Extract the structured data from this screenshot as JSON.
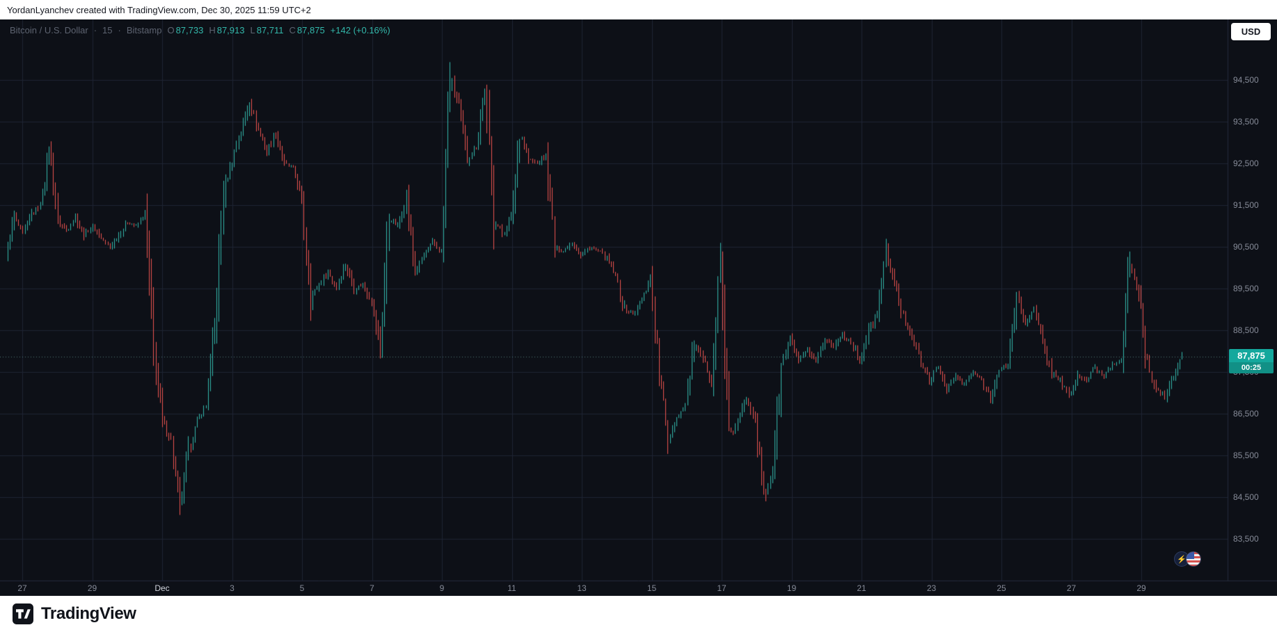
{
  "top_bar": {
    "attribution": "YordanLyanchev created with TradingView.com, Dec 30, 2025 11:59 UTC+2"
  },
  "header": {
    "symbol": "Bitcoin / U.S. Dollar",
    "separator": "·",
    "interval": "15",
    "exchange": "Bitstamp",
    "ohlc": [
      {
        "label": "O",
        "value": "87,733"
      },
      {
        "label": "H",
        "value": "87,913"
      },
      {
        "label": "L",
        "value": "87,711"
      },
      {
        "label": "C",
        "value": "87,875"
      }
    ],
    "change": "+142 (+0.16%)",
    "currency_button": "USD"
  },
  "price_scale": {
    "ticks": [
      {
        "label": "94,500",
        "value": 94500
      },
      {
        "label": "93,500",
        "value": 93500
      },
      {
        "label": "92,500",
        "value": 92500
      },
      {
        "label": "91,500",
        "value": 91500
      },
      {
        "label": "90,500",
        "value": 90500
      },
      {
        "label": "89,500",
        "value": 89500
      },
      {
        "label": "88,500",
        "value": 88500
      },
      {
        "label": "87,500",
        "value": 87500
      },
      {
        "label": "86,500",
        "value": 86500
      },
      {
        "label": "85,500",
        "value": 85500
      },
      {
        "label": "84,500",
        "value": 84500
      },
      {
        "label": "83,500",
        "value": 83500
      }
    ],
    "last_price_label": "87,875",
    "countdown": "00:25"
  },
  "time_scale": {
    "ticks": [
      "27",
      "29",
      "Dec",
      "3",
      "5",
      "7",
      "9",
      "11",
      "13",
      "15",
      "17",
      "19",
      "21",
      "23",
      "25",
      "27",
      "29"
    ],
    "month_tick": "Dec"
  },
  "footer": {
    "brand": "TradingView"
  },
  "colors": {
    "background": "#0d1017",
    "grid": "#1e2433",
    "up": "#33b8ab",
    "down": "#ee5450",
    "badge": "#14a89d",
    "axis_text": "#868b98",
    "last_price_line": "rgba(137,204,196,0.55)"
  },
  "chart_data": {
    "type": "candlestick",
    "title": "Bitcoin / U.S. Dollar, 15, Bitstamp",
    "x_ticks": [
      "27",
      "29",
      "Dec",
      "3",
      "5",
      "7",
      "9",
      "11",
      "13",
      "15",
      "17",
      "19",
      "21",
      "23",
      "25",
      "27",
      "29"
    ],
    "y_ticks": [
      94500,
      93500,
      92500,
      91500,
      90500,
      89500,
      88500,
      87500,
      86500,
      85500,
      84500,
      83500
    ],
    "ylim": [
      82500,
      95500
    ],
    "last": {
      "open": 87733,
      "high": 87913,
      "low": 87711,
      "close": 87875,
      "change": 142,
      "change_pct": 0.16
    },
    "samples_per_day": 4,
    "price_path_note": "approximate price samples (~6h apart) read from the chart, Nov 27 through Dec 30",
    "price_path": [
      90300,
      91200,
      90800,
      91300,
      91500,
      92900,
      91100,
      90900,
      91200,
      90800,
      91000,
      90700,
      90500,
      90800,
      91100,
      91000,
      91300,
      88000,
      86300,
      85900,
      84200,
      85600,
      86300,
      86700,
      88500,
      91800,
      92600,
      93300,
      94000,
      93300,
      92800,
      93200,
      92500,
      92400,
      91600,
      89300,
      89600,
      89900,
      89500,
      90100,
      89500,
      89600,
      89200,
      88000,
      91200,
      91000,
      91700,
      89900,
      90300,
      90600,
      90400,
      94600,
      93900,
      92600,
      92900,
      94300,
      91200,
      90800,
      91200,
      93300,
      92600,
      92500,
      92700,
      90500,
      90400,
      90600,
      90300,
      90500,
      90400,
      90200,
      89800,
      89000,
      88900,
      89200,
      89800,
      87500,
      85900,
      86400,
      86700,
      88200,
      87800,
      87300,
      90200,
      85900,
      86300,
      86900,
      86400,
      84400,
      85200,
      87600,
      88300,
      87800,
      88000,
      87700,
      88300,
      88100,
      88400,
      88200,
      87800,
      88500,
      88900,
      90400,
      89600,
      88800,
      88400,
      87700,
      87300,
      87600,
      87100,
      87400,
      87200,
      87500,
      87300,
      86900,
      87500,
      87700,
      89300,
      88700,
      89000,
      88200,
      87500,
      87300,
      86900,
      87400,
      87300,
      87600,
      87400,
      87700,
      87800,
      90200,
      89300,
      87600,
      87100,
      86900,
      87400,
      87875
    ]
  }
}
